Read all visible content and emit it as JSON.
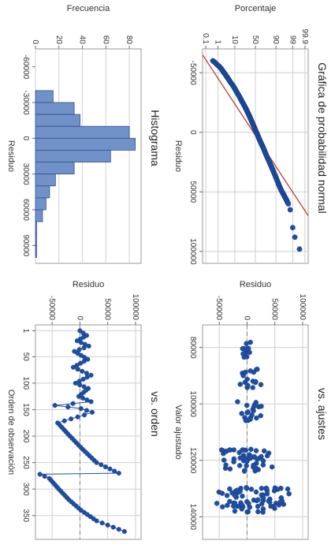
{
  "chart_data": [
    {
      "type": "scatter",
      "title": "Gráfica de probabilidad normal",
      "xlabel": "Residuo",
      "ylabel": "Porcentaje",
      "x_ticks": [
        "-50000",
        "0",
        "50000",
        "100000"
      ],
      "y_ticks": [
        "0.1",
        "1",
        "10",
        "50",
        "90",
        "99",
        "99.9"
      ],
      "xlim": [
        -70000,
        110000
      ],
      "fit_line": {
        "x": [
          -65000,
          70000
        ],
        "percent": [
          0.05,
          99.95
        ]
      },
      "points": [
        {
          "x": -60000,
          "y": 0.4
        },
        {
          "x": -57000,
          "y": 0.8
        },
        {
          "x": -54000,
          "y": 1.5
        },
        {
          "x": -50000,
          "y": 2.5
        },
        {
          "x": -46000,
          "y": 4
        },
        {
          "x": -42000,
          "y": 6
        },
        {
          "x": -38000,
          "y": 9
        },
        {
          "x": -34000,
          "y": 12
        },
        {
          "x": -30000,
          "y": 16
        },
        {
          "x": -26000,
          "y": 20
        },
        {
          "x": -22000,
          "y": 25
        },
        {
          "x": -18000,
          "y": 30
        },
        {
          "x": -14000,
          "y": 35
        },
        {
          "x": -10000,
          "y": 40
        },
        {
          "x": -6000,
          "y": 45
        },
        {
          "x": -2000,
          "y": 50
        },
        {
          "x": 2000,
          "y": 55
        },
        {
          "x": 6000,
          "y": 60
        },
        {
          "x": 10000,
          "y": 65
        },
        {
          "x": 14000,
          "y": 70
        },
        {
          "x": 19000,
          "y": 75
        },
        {
          "x": 24000,
          "y": 80
        },
        {
          "x": 30000,
          "y": 85
        },
        {
          "x": 36000,
          "y": 89
        },
        {
          "x": 42000,
          "y": 92
        },
        {
          "x": 47000,
          "y": 94
        },
        {
          "x": 52000,
          "y": 96
        },
        {
          "x": 56000,
          "y": 97.2
        },
        {
          "x": 60000,
          "y": 98
        },
        {
          "x": 65000,
          "y": 98.5
        },
        {
          "x": 80000,
          "y": 99
        },
        {
          "x": 88000,
          "y": 99.3
        },
        {
          "x": 98000,
          "y": 99.7
        }
      ]
    },
    {
      "type": "scatter",
      "title": "vs. ajustes",
      "xlabel": "Valor ajustado",
      "ylabel": "Residuo",
      "x_ticks": [
        "80000",
        "100000",
        "120000",
        "140000"
      ],
      "y_ticks": [
        "-50000",
        "0",
        "50000",
        "100000"
      ],
      "xlim": [
        72000,
        148000
      ],
      "ylim": [
        -80000,
        110000
      ],
      "reference_line": 0,
      "clusters": [
        {
          "x_center": 81000,
          "x_spread": 3000,
          "count": 12,
          "resid_min": -18000,
          "resid_max": 20000
        },
        {
          "x_center": 91000,
          "x_spread": 3500,
          "count": 18,
          "resid_min": -22000,
          "resid_max": 32000
        },
        {
          "x_center": 102500,
          "x_spread": 3500,
          "count": 20,
          "resid_min": -26000,
          "resid_max": 40000
        },
        {
          "x_center": 120000,
          "x_spread": 4000,
          "count": 55,
          "resid_min": -65000,
          "resid_max": 70000
        },
        {
          "x_center": 134000,
          "x_spread": 4500,
          "count": 75,
          "resid_min": -68000,
          "resid_max": 90000
        }
      ]
    },
    {
      "type": "bar",
      "title": "Histograma",
      "xlabel": "Residuo",
      "ylabel": "Frecuencia",
      "x_ticks": [
        "-60000",
        "-30000",
        "0",
        "30000",
        "60000",
        "90000"
      ],
      "y_ticks": [
        "0",
        "20",
        "40",
        "60",
        "80"
      ],
      "ylim": [
        0,
        90
      ],
      "bins": [
        {
          "start": -40000,
          "end": -30000,
          "count": 15
        },
        {
          "start": -30000,
          "end": -20000,
          "count": 33
        },
        {
          "start": -20000,
          "end": -10000,
          "count": 38
        },
        {
          "start": -10000,
          "end": 0,
          "count": 80
        },
        {
          "start": 0,
          "end": 10000,
          "count": 85
        },
        {
          "start": 10000,
          "end": 20000,
          "count": 64
        },
        {
          "start": 20000,
          "end": 30000,
          "count": 33
        },
        {
          "start": 30000,
          "end": 40000,
          "count": 17
        },
        {
          "start": 40000,
          "end": 50000,
          "count": 12
        },
        {
          "start": 50000,
          "end": 60000,
          "count": 9
        },
        {
          "start": 60000,
          "end": 70000,
          "count": 6
        },
        {
          "start": 70000,
          "end": 80000,
          "count": 1
        },
        {
          "start": 80000,
          "end": 90000,
          "count": 1
        },
        {
          "start": 90000,
          "end": 100000,
          "count": 1
        }
      ]
    },
    {
      "type": "line",
      "title": "vs. orden",
      "xlabel": "Orden de observación",
      "ylabel": "Residuo",
      "x_ticks": [
        "1",
        "50",
        "100",
        "150",
        "200",
        "250",
        "300",
        "350"
      ],
      "y_ticks": [
        "-50000",
        "0",
        "50000",
        "100000"
      ],
      "xlim": [
        -10,
        395
      ],
      "ylim": [
        -80000,
        110000
      ],
      "reference_line": 0,
      "key_points": [
        {
          "x": 1,
          "y": 0
        },
        {
          "x": 10,
          "y": 12000
        },
        {
          "x": 20,
          "y": -5000
        },
        {
          "x": 30,
          "y": 16000
        },
        {
          "x": 40,
          "y": -10000
        },
        {
          "x": 55,
          "y": 14000
        },
        {
          "x": 70,
          "y": -12000
        },
        {
          "x": 85,
          "y": 20000
        },
        {
          "x": 100,
          "y": -8000
        },
        {
          "x": 110,
          "y": 15000
        },
        {
          "x": 125,
          "y": -2000
        },
        {
          "x": 135,
          "y": 20000
        },
        {
          "x": 142,
          "y": -45000
        },
        {
          "x": 148,
          "y": 2000
        },
        {
          "x": 155,
          "y": 22000
        },
        {
          "x": 160,
          "y": 8000
        },
        {
          "x": 175,
          "y": -40000
        },
        {
          "x": 200,
          "y": -18000
        },
        {
          "x": 225,
          "y": 5000
        },
        {
          "x": 250,
          "y": 30000
        },
        {
          "x": 270,
          "y": 70000
        },
        {
          "x": 272,
          "y": -72000
        },
        {
          "x": 280,
          "y": -55000
        },
        {
          "x": 300,
          "y": -38000
        },
        {
          "x": 320,
          "y": -20000
        },
        {
          "x": 340,
          "y": 2000
        },
        {
          "x": 360,
          "y": 30000
        },
        {
          "x": 380,
          "y": 80000
        }
      ]
    }
  ]
}
